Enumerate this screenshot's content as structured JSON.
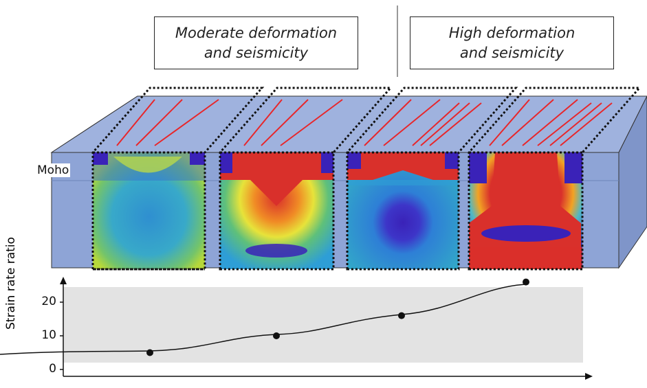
{
  "panels": {
    "left_title": [
      "Moderate deformation",
      "and seismicity"
    ],
    "right_title": [
      "High deformation",
      "and seismicity"
    ]
  },
  "block": {
    "moho_label": "Moho",
    "sections": 4,
    "colors": {
      "block_fill": "#8ea4d6",
      "block_top": "#98acdb",
      "fault_lines": "#e8262a",
      "high_strain": "#d9302b",
      "low_strain": "#3a22b8",
      "mid_strain": "#2e9ed6"
    }
  },
  "chart_data": {
    "type": "line",
    "title": "",
    "xlabel": "",
    "ylabel": "Strain rate ratio",
    "y_ticks": [
      "0",
      "10",
      "20"
    ],
    "ylim": [
      0,
      25
    ],
    "points": [
      {
        "panel": 1,
        "y": 5
      },
      {
        "panel": 2,
        "y": 10
      },
      {
        "panel": 3,
        "y": 16
      },
      {
        "panel": 4,
        "y": 26
      }
    ],
    "colors": {
      "band": "#e3e3e3",
      "line": "#111111"
    }
  }
}
